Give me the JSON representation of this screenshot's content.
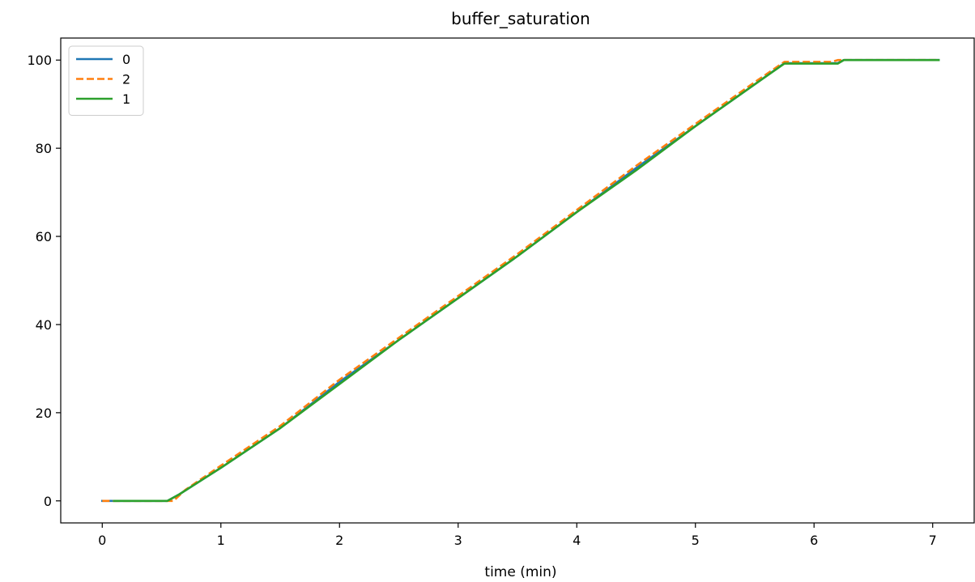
{
  "chart_data": {
    "type": "line",
    "title": "buffer_saturation",
    "xlabel": "time (min)",
    "ylabel": "",
    "xlim": [
      -0.35,
      7.35
    ],
    "ylim": [
      -5,
      105
    ],
    "xticks": [
      0,
      1,
      2,
      3,
      4,
      5,
      6,
      7
    ],
    "yticks": [
      0,
      20,
      40,
      60,
      80,
      100
    ],
    "grid": false,
    "legend": "top-left",
    "series": [
      {
        "name": "0",
        "color": "#1f77b4",
        "dash": "solid",
        "x": [
          0.0,
          0.55,
          0.65,
          1.0,
          1.5,
          2.0,
          2.5,
          3.0,
          3.5,
          4.0,
          4.5,
          5.0,
          5.5,
          5.75,
          6.2,
          6.25,
          7.05
        ],
        "y": [
          0,
          0,
          1.5,
          7.5,
          16.5,
          27,
          36.5,
          46,
          55.5,
          65.5,
          75.5,
          85,
          94.5,
          99.3,
          99.3,
          100,
          100
        ]
      },
      {
        "name": "2",
        "color": "#ff7f0e",
        "dash": "dashed",
        "x": [
          0.0,
          0.6,
          0.7,
          1.0,
          1.5,
          2.0,
          2.5,
          3.0,
          3.5,
          4.0,
          4.5,
          5.0,
          5.5,
          5.75,
          6.15,
          6.2,
          7.05
        ],
        "y": [
          0,
          0,
          2.5,
          8,
          17,
          27.5,
          37,
          46.5,
          56,
          66,
          76,
          85.5,
          95,
          99.6,
          99.6,
          100,
          100
        ]
      },
      {
        "name": "1",
        "color": "#2ca02c",
        "dash": "solid",
        "x": [
          0.1,
          0.55,
          0.65,
          1.0,
          1.5,
          2.0,
          2.5,
          3.0,
          3.5,
          4.0,
          4.5,
          5.0,
          5.5,
          5.75,
          6.2,
          6.25,
          7.05
        ],
        "y": [
          0,
          0,
          1.5,
          7.5,
          16.5,
          26.5,
          36.5,
          46,
          55.5,
          65.5,
          75,
          85,
          94.5,
          99.2,
          99.2,
          100,
          100
        ]
      }
    ]
  }
}
